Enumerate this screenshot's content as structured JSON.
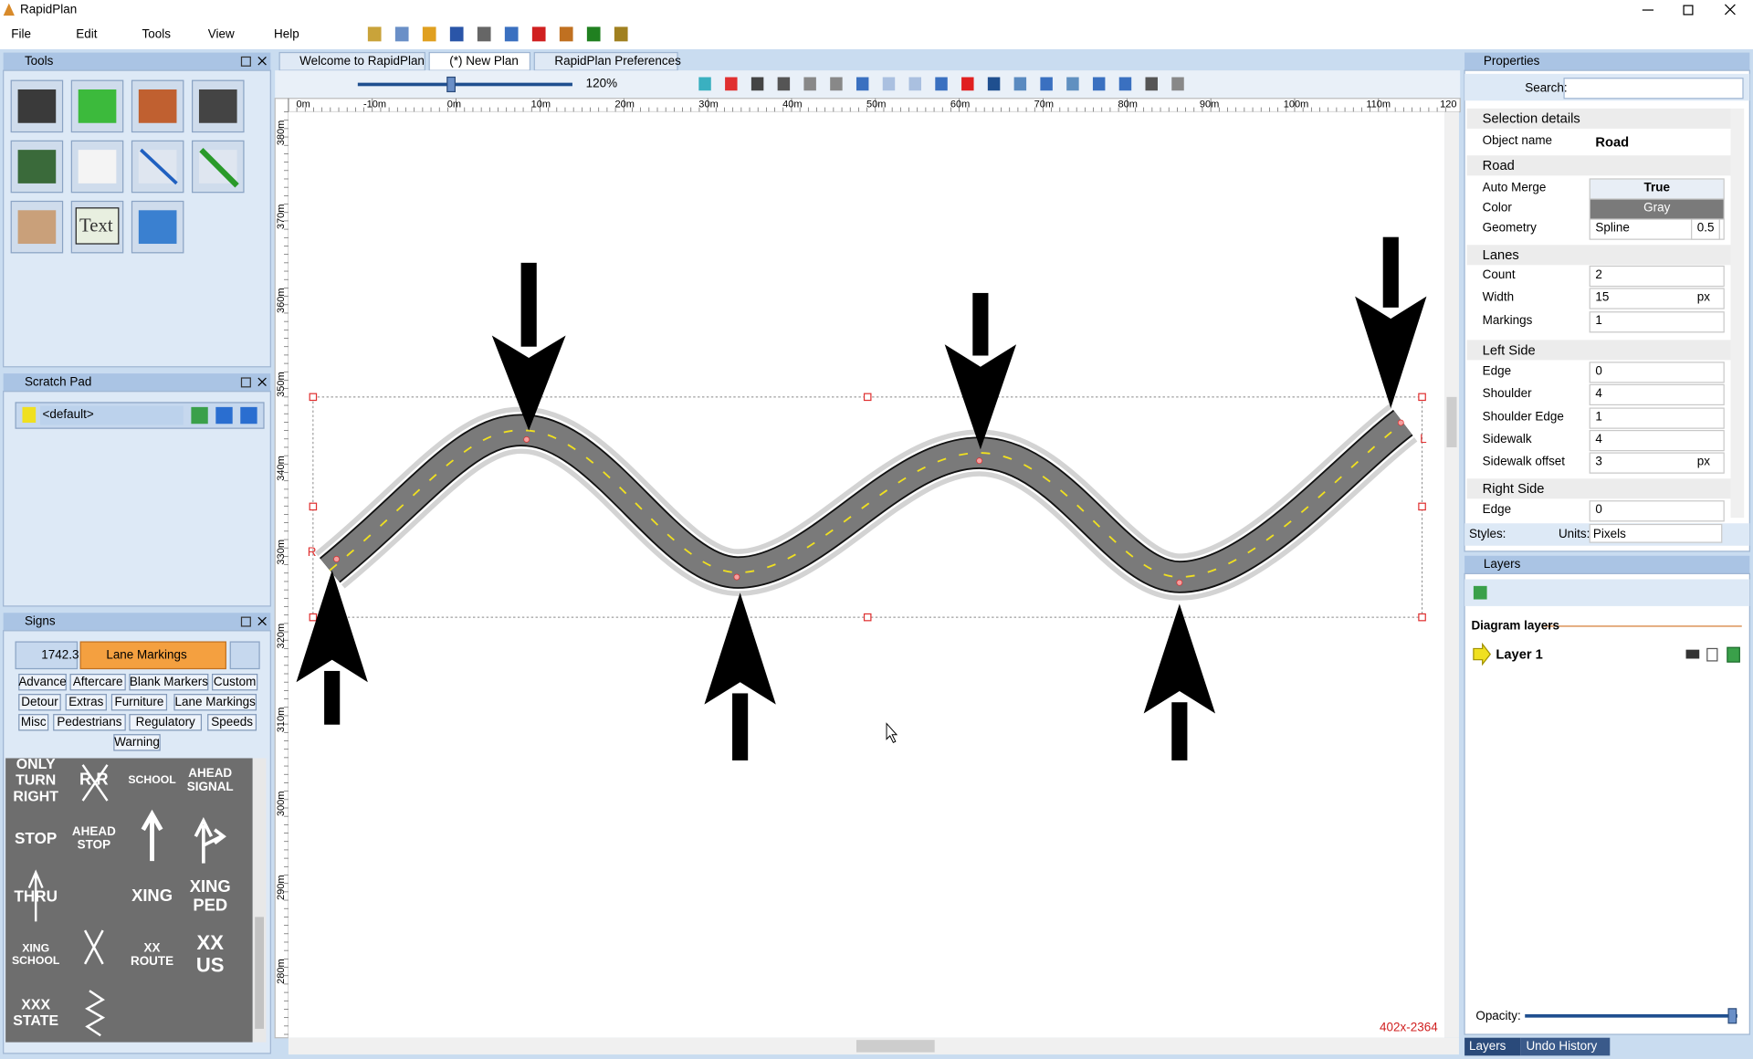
{
  "app_title": "RapidPlan",
  "menu": [
    "File",
    "Edit",
    "Tools",
    "View",
    "Help"
  ],
  "tools_panel": {
    "title": "Tools",
    "text_tool": "Text"
  },
  "scratch_pad": {
    "title": "Scratch Pad",
    "item": "<default>"
  },
  "signs_panel": {
    "title": "Signs",
    "count": "1742.3",
    "category": "Lane Markings",
    "tabs": [
      "Advance",
      "Aftercare",
      "Blank Markers",
      "Custom",
      "Detour",
      "Extras",
      "Furniture",
      "Lane Markings",
      "Misc",
      "Pedestrians",
      "Regulatory",
      "Speeds",
      "Warning"
    ],
    "signs": [
      "ONLY\nTURN\nRIGHT",
      "R R",
      "SCHOOL",
      "AHEAD\nSIGNAL",
      "STOP",
      "AHEAD\nSTOP",
      "THRU",
      "XING",
      "XING\nPED",
      "XING\nSCHOOL",
      "XX\nROUTE",
      "XX\nUS",
      "XXX\nSTATE"
    ]
  },
  "document_tabs": [
    "Welcome to RapidPlan",
    "(*) New Plan",
    "RapidPlan Preferences"
  ],
  "toolbar": {
    "zoom": "120%"
  },
  "rulers": {
    "x": [
      "0m",
      "-10m",
      "0m",
      "10m",
      "20m",
      "30m",
      "40m",
      "50m",
      "60m",
      "70m",
      "80m",
      "90m",
      "100m",
      "110m",
      "120"
    ],
    "y": [
      "380m",
      "370m",
      "360m",
      "350m",
      "340m",
      "330m",
      "320m",
      "310m",
      "300m",
      "290m",
      "280m"
    ]
  },
  "canvas": {
    "handle_labels": [
      "R",
      "L"
    ],
    "coordinates": "402x-2364"
  },
  "properties": {
    "title": "Properties",
    "search_label": "Search:",
    "sections": [
      {
        "name": "Selection details",
        "rows": [
          {
            "label": "Object name",
            "value": "Road"
          }
        ]
      },
      {
        "name": "Road",
        "rows": [
          {
            "label": "Auto Merge",
            "value": "True"
          },
          {
            "label": "Color",
            "value": "Gray"
          },
          {
            "label": "Geometry",
            "value": "Spline",
            "extra": "0.5"
          }
        ]
      },
      {
        "name": "Lanes",
        "rows": [
          {
            "label": "Count",
            "value": "2"
          },
          {
            "label": "Width",
            "value": "15",
            "unit": "px"
          },
          {
            "label": "Markings",
            "value": "1"
          }
        ]
      },
      {
        "name": "Left Side",
        "rows": [
          {
            "label": "Edge",
            "value": "0"
          },
          {
            "label": "Shoulder",
            "value": "4"
          },
          {
            "label": "Shoulder Edge",
            "value": "1"
          },
          {
            "label": "Sidewalk",
            "value": "4"
          },
          {
            "label": "Sidewalk offset",
            "value": "3",
            "unit": "px"
          }
        ]
      },
      {
        "name": "Right Side",
        "rows": [
          {
            "label": "Edge",
            "value": "0"
          }
        ]
      }
    ],
    "styles_label": "Styles:",
    "units_label": "Units:",
    "units_value": "Pixels"
  },
  "layers": {
    "title": "Layers",
    "heading": "Diagram layers",
    "items": [
      "Layer 1"
    ],
    "opacity_label": "Opacity:"
  },
  "bottom_tabs": [
    "Layers",
    "Undo History"
  ]
}
